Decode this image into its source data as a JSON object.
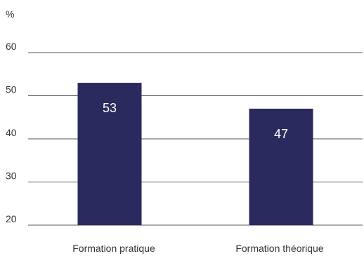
{
  "chart_data": {
    "type": "bar",
    "ylabel": "%",
    "categories": [
      "Formation pratique",
      "Formation théorique"
    ],
    "values": [
      53,
      47
    ],
    "data_labels": [
      "53",
      "47"
    ],
    "ylim": [
      20,
      60
    ],
    "yticks": [
      "20",
      "30",
      "40",
      "50",
      "60"
    ],
    "grid": true,
    "bar_color": "#2b2a5e",
    "grid_color": "#555555",
    "text_color": "#333333",
    "label_color": "#ffffff"
  }
}
